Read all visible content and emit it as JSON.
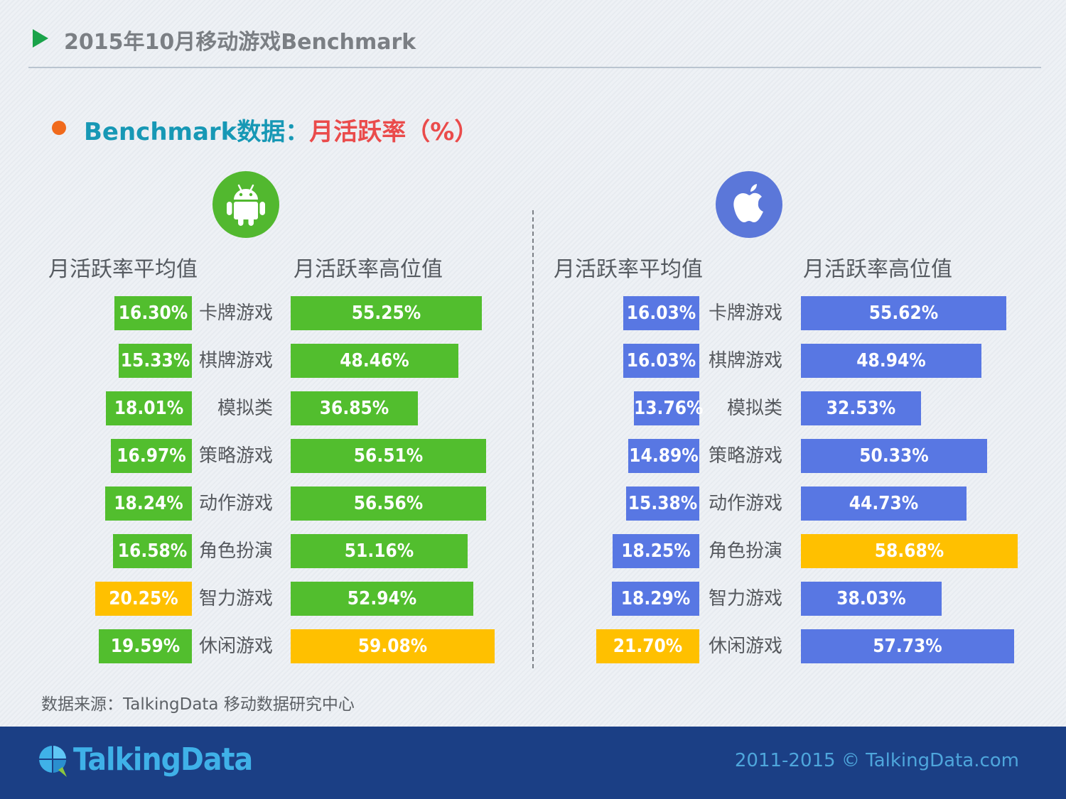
{
  "header": {
    "title": "2015年10月移动游戏Benchmark"
  },
  "subtitle": {
    "prefix": "Benchmark数据：",
    "metric": "月活跃率（%）"
  },
  "panels": [
    {
      "platform": "Android",
      "icon": "android-icon",
      "avg_label": "月活跃率平均值",
      "high_label": "月活跃率高位值"
    },
    {
      "platform": "iOS",
      "icon": "apple-icon",
      "avg_label": "月活跃率平均值",
      "high_label": "月活跃率高位值"
    }
  ],
  "colors": {
    "android": "#52be2e",
    "ios": "#5877e3",
    "highlight": "#ffc000"
  },
  "chart_data": [
    {
      "type": "bar",
      "platform": "Android",
      "categories": [
        "卡牌游戏",
        "棋牌游戏",
        "模拟类",
        "策略游戏",
        "动作游戏",
        "角色扮演",
        "智力游戏",
        "休闲游戏"
      ],
      "series": [
        {
          "name": "月活跃率平均值",
          "values": [
            16.3,
            15.33,
            18.01,
            16.97,
            18.24,
            16.58,
            20.25,
            19.59
          ],
          "labels": [
            "16.30%",
            "15.33%",
            "18.01%",
            "16.97%",
            "18.24%",
            "16.58%",
            "20.25%",
            "19.59%"
          ],
          "highlight_index": 6
        },
        {
          "name": "月活跃率高位值",
          "values": [
            55.25,
            48.46,
            36.85,
            56.51,
            56.56,
            51.16,
            52.94,
            59.08
          ],
          "labels": [
            "55.25%",
            "48.46%",
            "36.85%",
            "56.51%",
            "56.56%",
            "51.16%",
            "52.94%",
            "59.08%"
          ],
          "highlight_index": 7
        }
      ],
      "unit": "%"
    },
    {
      "type": "bar",
      "platform": "iOS",
      "categories": [
        "卡牌游戏",
        "棋牌游戏",
        "模拟类",
        "策略游戏",
        "动作游戏",
        "角色扮演",
        "智力游戏",
        "休闲游戏"
      ],
      "series": [
        {
          "name": "月活跃率平均值",
          "values": [
            16.03,
            16.03,
            13.76,
            14.89,
            15.38,
            18.25,
            18.29,
            21.7
          ],
          "labels": [
            "16.03%",
            "16.03%",
            "13.76%",
            "14.89%",
            "15.38%",
            "18.25%",
            "18.29%",
            "21.70%"
          ],
          "highlight_index": 7
        },
        {
          "name": "月活跃率高位值",
          "values": [
            55.62,
            48.94,
            32.53,
            50.33,
            44.73,
            58.68,
            38.03,
            57.73
          ],
          "labels": [
            "55.62%",
            "48.94%",
            "32.53%",
            "50.33%",
            "44.73%",
            "58.68%",
            "38.03%",
            "57.73%"
          ],
          "highlight_index": 5
        }
      ],
      "unit": "%"
    }
  ],
  "footer": {
    "source": "数据来源：TalkingData 移动数据研究中心",
    "brand": "TalkingData",
    "copyright": "2011-2015 © TalkingData.com"
  }
}
